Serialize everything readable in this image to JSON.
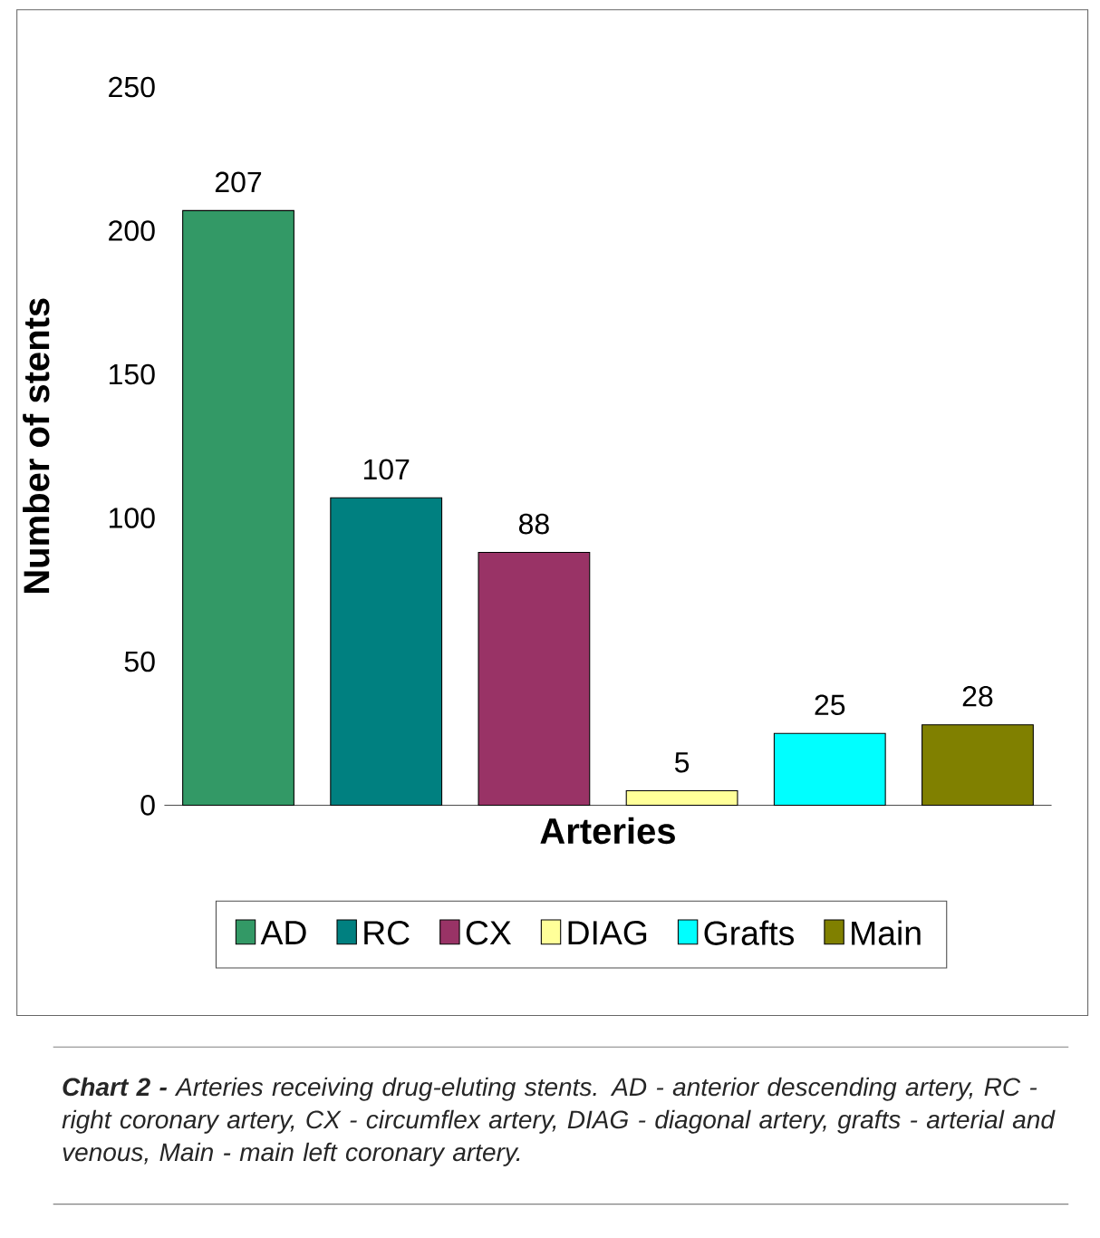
{
  "chart_data": {
    "type": "bar",
    "categories": [
      null,
      null,
      null,
      null,
      null,
      null
    ],
    "xlabel": "Arteries",
    "ylabel": "Number of stents",
    "series": [
      {
        "name": "AD",
        "color": "#339966",
        "values": [
          207,
          null,
          null,
          null,
          null,
          null
        ]
      },
      {
        "name": "RC",
        "color": "#008080",
        "values": [
          null,
          107,
          null,
          null,
          null,
          null
        ]
      },
      {
        "name": "CX",
        "color": "#993366",
        "values": [
          null,
          null,
          88,
          null,
          null,
          null
        ]
      },
      {
        "name": "DIAG",
        "color": "#ffff99",
        "values": [
          null,
          null,
          null,
          5,
          null,
          null
        ]
      },
      {
        "name": "Grafts",
        "color": "#00ffff",
        "values": [
          null,
          null,
          null,
          null,
          25,
          null
        ]
      },
      {
        "name": "Main",
        "color": "#808000",
        "values": [
          null,
          null,
          null,
          null,
          null,
          28
        ]
      }
    ],
    "ylim": [
      0,
      250
    ],
    "yticks": [
      0,
      50,
      100,
      150,
      200,
      250
    ],
    "data_labels": true,
    "legend": "bottom",
    "grid": false,
    "annotations": [
      "**Chart 2 -** Arteries receiving drug-eluting stents. AD - anterior descending artery, RC - right coronary artery, CX - circumflex artery, DIAG - diagonal artery, grafts - arterial and venous, Main - main left coronary artery."
    ]
  }
}
